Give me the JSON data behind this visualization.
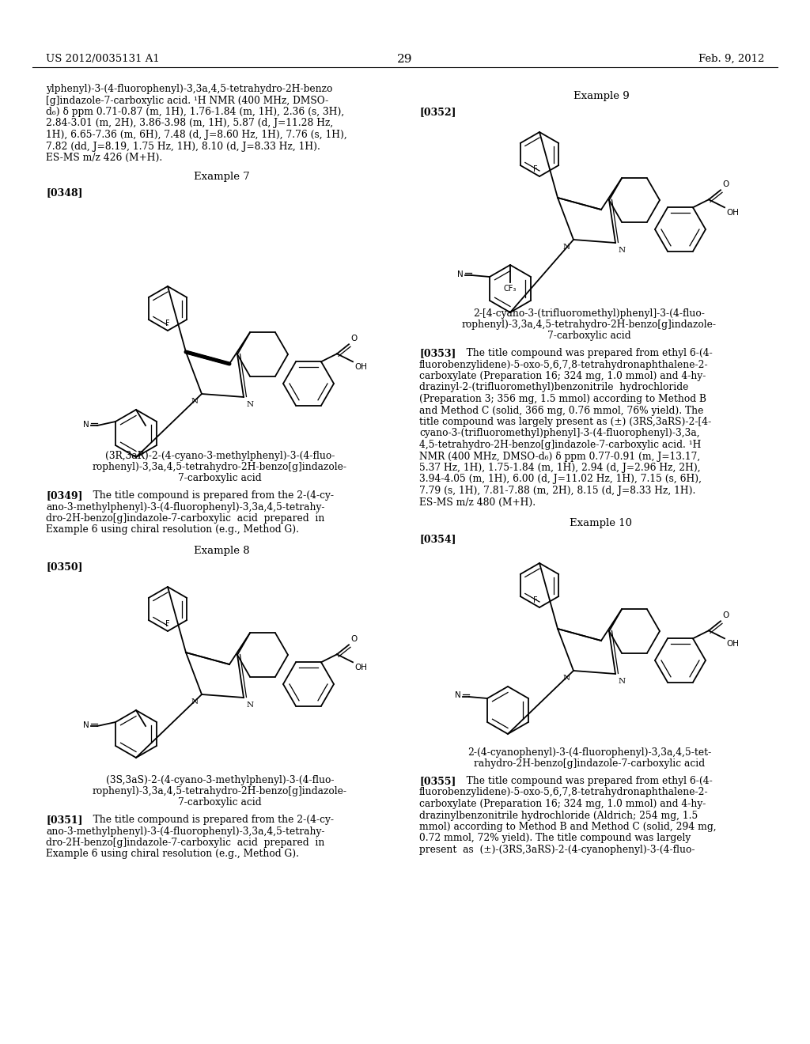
{
  "bg": "#ffffff",
  "header_left": "US 2012/0035131 A1",
  "header_center": "29",
  "header_right": "Feb. 9, 2012",
  "left_top_lines": [
    "ylphenyl)-3-(4-fluorophenyl)-3,3a,4,5-tetrahydro-2H-benzo",
    "[g]indazole-7-carboxylic acid. ¹H NMR (400 MHz, DMSO-",
    "d₆) δ ppm 0.71-0.87 (m, 1H), 1.76-1.84 (m, 1H), 2.36 (s, 3H),",
    "2.84-3.01 (m, 2H), 3.86-3.98 (m, 1H), 5.87 (d, J=11.28 Hz,",
    "1H), 6.65-7.36 (m, 6H), 7.48 (d, J=8.60 Hz, 1H), 7.76 (s, 1H),",
    "7.82 (dd, J=8.19, 1.75 Hz, 1H), 8.10 (d, J=8.33 Hz, 1H).",
    "ES-MS m/z 426 (M+H)."
  ],
  "ex7_header": "Example 7",
  "ex7_label": "[0348]",
  "ex7_caption": [
    "(3R,3aR)-2-(4-cyano-3-methylphenyl)-3-(4-fluo-",
    "rophenyl)-3,3a,4,5-tetrahydro-2H-benzo[g]indazole-",
    "7-carboxylic acid"
  ],
  "ex7_para_label": "[0349]",
  "ex7_para_lines": [
    "   The title compound is prepared from the 2-(4-cy-",
    "ano-3-methylphenyl)-3-(4-fluorophenyl)-3,3a,4,5-tetrahy-",
    "dro-2H-benzo[g]indazole-7-carboxylic  acid  prepared  in",
    "Example 6 using chiral resolution (e.g., Method G)."
  ],
  "ex8_header": "Example 8",
  "ex8_label": "[0350]",
  "ex8_caption": [
    "(3S,3aS)-2-(4-cyano-3-methylphenyl)-3-(4-fluo-",
    "rophenyl)-3,3a,4,5-tetrahydro-2H-benzo[g]indazole-",
    "7-carboxylic acid"
  ],
  "ex8_para_label": "[0351]",
  "ex8_para_lines": [
    "   The title compound is prepared from the 2-(4-cy-",
    "ano-3-methylphenyl)-3-(4-fluorophenyl)-3,3a,4,5-tetrahy-",
    "dro-2H-benzo[g]indazole-7-carboxylic  acid  prepared  in",
    "Example 6 using chiral resolution (e.g., Method G)."
  ],
  "ex9_header": "Example 9",
  "ex9_label": "[0352]",
  "ex9_caption": [
    "2-[4-cyano-3-(trifluoromethyl)phenyl]-3-(4-fluo-",
    "rophenyl)-3,3a,4,5-tetrahydro-2H-benzo[g]indazole-",
    "7-carboxylic acid"
  ],
  "ex9_para_label": "[0353]",
  "ex9_para_lines": [
    "   The title compound was prepared from ethyl 6-(4-",
    "fluorobenzylidene)-5-oxo-5,6,7,8-tetrahydronaphthalene-2-",
    "carboxylate (Preparation 16; 324 mg, 1.0 mmol) and 4-hy-",
    "drazinyl-2-(trifluoromethyl)benzonitrile  hydrochloride",
    "(Preparation 3; 356 mg, 1.5 mmol) according to Method B",
    "and Method C (solid, 366 mg, 0.76 mmol, 76% yield). The",
    "title compound was largely present as (±) (3RS,3aRS)-2-[4-",
    "cyano-3-(trifluoromethyl)phenyl]-3-(4-fluorophenyl)-3,3a,",
    "4,5-tetrahydro-2H-benzo[g]indazole-7-carboxylic acid. ¹H",
    "NMR (400 MHz, DMSO-d₆) δ ppm 0.77-0.91 (m, J=13.17,",
    "5.37 Hz, 1H), 1.75-1.84 (m, 1H), 2.94 (d, J=2.96 Hz, 2H),",
    "3.94-4.05 (m, 1H), 6.00 (d, J=11.02 Hz, 1H), 7.15 (s, 6H),",
    "7.79 (s, 1H), 7.81-7.88 (m, 2H), 8.15 (d, J=8.33 Hz, 1H).",
    "ES-MS m/z 480 (M+H)."
  ],
  "ex10_header": "Example 10",
  "ex10_label": "[0354]",
  "ex10_caption": [
    "2-(4-cyanophenyl)-3-(4-fluorophenyl)-3,3a,4,5-tet-",
    "rahydro-2H-benzo[g]indazole-7-carboxylic acid"
  ],
  "ex10_para_label": "[0355]",
  "ex10_para_lines": [
    "   The title compound was prepared from ethyl 6-(4-",
    "fluorobenzylidene)-5-oxo-5,6,7,8-tetrahydronaphthalene-2-",
    "carboxylate (Preparation 16; 324 mg, 1.0 mmol) and 4-hy-",
    "drazinylbenzonitrile hydrochloride (Aldrich; 254 mg, 1.5",
    "mmol) according to Method B and Method C (solid, 294 mg,",
    "0.72 mmol, 72% yield). The title compound was largely",
    "present  as  (±)-(3RS,3aRS)-2-(4-cyanophenyl)-3-(4-fluo-"
  ]
}
